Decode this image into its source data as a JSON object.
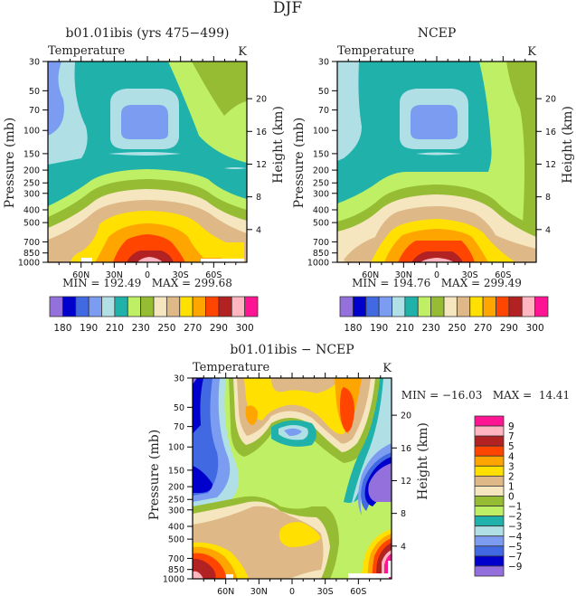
{
  "figure_title": "DJF",
  "chart_data": [
    {
      "type": "heatmap",
      "subtype": "filled-contour",
      "title": "b01.01ibis (yrs 475−499)",
      "left_string": "Temperature",
      "right_string": "K",
      "xlabel": "",
      "ylabel": "Pressure (mb)",
      "ylabel_right": "Height (km)",
      "x_ticks": [
        "60N",
        "30N",
        "0",
        "30S",
        "60S"
      ],
      "x_range": [
        "90N",
        "90S"
      ],
      "y_ticks": [
        "30",
        "50",
        "70",
        "100",
        "150",
        "200",
        "250",
        "300",
        "400",
        "500",
        "700",
        "850",
        "1000"
      ],
      "y_range": [
        1000,
        30
      ],
      "y_right_ticks": [
        "4",
        "8",
        "12",
        "16",
        "20"
      ],
      "stats": "MIN = 192.49   MAX = 299.68",
      "min": 192.49,
      "max": 299.68,
      "colorbar": {
        "orientation": "horizontal",
        "labels": [
          "180",
          "190",
          "210",
          "230",
          "250",
          "270",
          "290",
          "300"
        ],
        "colors": [
          "#9370DB",
          "#0000CD",
          "#4169E1",
          "#7B9CF0",
          "#B0E0E6",
          "#20B2AA",
          "#BFEF65",
          "#96BC33",
          "#F5E6C0",
          "#DEB887",
          "#FFE000",
          "#FFA500",
          "#FF4500",
          "#B22222",
          "#FFB6C1",
          "#FF1493"
        ]
      }
    },
    {
      "type": "heatmap",
      "subtype": "filled-contour",
      "title": "NCEP",
      "left_string": "Temperature",
      "right_string": "K",
      "xlabel": "",
      "ylabel": "Pressure (mb)",
      "ylabel_right": "Height (km)",
      "x_ticks": [
        "60N",
        "30N",
        "0",
        "30S",
        "60S"
      ],
      "x_range": [
        "90N",
        "90S"
      ],
      "y_ticks": [
        "30",
        "50",
        "70",
        "100",
        "150",
        "200",
        "250",
        "300",
        "400",
        "500",
        "700",
        "850",
        "1000"
      ],
      "y_range": [
        1000,
        30
      ],
      "y_right_ticks": [
        "4",
        "8",
        "12",
        "16",
        "20"
      ],
      "stats": "MIN = 194.76   MAX = 299.49",
      "min": 194.76,
      "max": 299.49,
      "colorbar": {
        "orientation": "horizontal",
        "labels": [
          "180",
          "190",
          "210",
          "230",
          "250",
          "270",
          "290",
          "300"
        ],
        "colors": [
          "#9370DB",
          "#0000CD",
          "#4169E1",
          "#7B9CF0",
          "#B0E0E6",
          "#20B2AA",
          "#BFEF65",
          "#96BC33",
          "#F5E6C0",
          "#DEB887",
          "#FFE000",
          "#FFA500",
          "#FF4500",
          "#B22222",
          "#FFB6C1",
          "#FF1493"
        ]
      }
    },
    {
      "type": "heatmap",
      "subtype": "filled-contour",
      "title": "b01.01ibis − NCEP",
      "left_string": "Temperature",
      "right_string": "K",
      "xlabel": "",
      "ylabel": "Pressure (mb)",
      "ylabel_right": "Height (km)",
      "x_ticks": [
        "60N",
        "30N",
        "0",
        "30S",
        "60S"
      ],
      "x_range": [
        "90N",
        "90S"
      ],
      "y_ticks": [
        "30",
        "50",
        "70",
        "100",
        "150",
        "200",
        "250",
        "300",
        "400",
        "500",
        "700",
        "850",
        "1000"
      ],
      "y_range": [
        1000,
        30
      ],
      "y_right_ticks": [
        "4",
        "8",
        "12",
        "16",
        "20"
      ],
      "stats": "MIN = −16.03   MAX =  14.41",
      "min": -16.03,
      "max": 14.41,
      "colorbar": {
        "orientation": "vertical",
        "labels": [
          "9",
          "7",
          "5",
          "4",
          "3",
          "2",
          "1",
          "0",
          "−1",
          "−2",
          "−3",
          "−4",
          "−5",
          "−7",
          "−9"
        ],
        "colors": [
          "#FF1493",
          "#FFB6C1",
          "#B22222",
          "#FF4500",
          "#FFA500",
          "#FFE000",
          "#DEB887",
          "#F5E6C0",
          "#96BC33",
          "#BFEF65",
          "#20B2AA",
          "#B0E0E6",
          "#7B9CF0",
          "#4169E1",
          "#0000CD",
          "#9370DB"
        ]
      }
    }
  ]
}
